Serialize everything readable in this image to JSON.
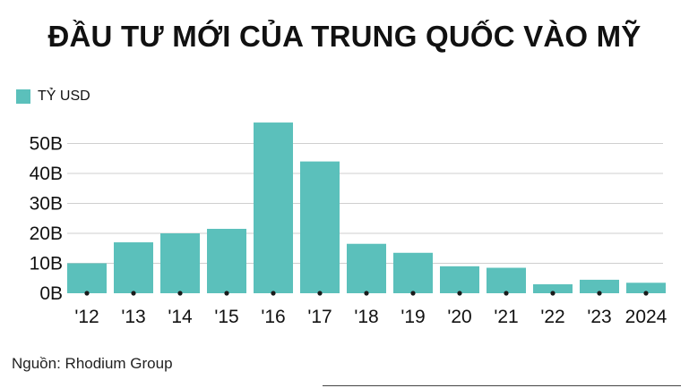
{
  "title": "ĐẦU TƯ MỚI CỦA TRUNG QUỐC VÀO MỸ",
  "legend": {
    "label": "TỶ USD"
  },
  "source": "Nguồn: Rhodium Group",
  "colors": {
    "bar": "#5bc0bb",
    "grid": "#cfcfcf",
    "text": "#111111",
    "dot": "#1a1a1a"
  },
  "chart_data": {
    "type": "bar",
    "categories": [
      "'12",
      "'13",
      "'14",
      "'15",
      "'16",
      "'17",
      "'18",
      "'19",
      "'20",
      "'21",
      "'22",
      "'23",
      "2024"
    ],
    "values": [
      10,
      17,
      20,
      21.5,
      57,
      44,
      16.5,
      13.5,
      9,
      8.5,
      3,
      4.5,
      3.5
    ],
    "series": [
      {
        "name": "TỶ USD",
        "values": [
          10,
          17,
          20,
          21.5,
          57,
          44,
          16.5,
          13.5,
          9,
          8.5,
          3,
          4.5,
          3.5
        ]
      }
    ],
    "yticks": [
      0,
      10,
      20,
      30,
      40,
      50
    ],
    "ytick_labels": [
      "0B",
      "10B",
      "20B",
      "30B",
      "40B",
      "50B"
    ],
    "ylim": [
      0,
      57
    ],
    "grid": true,
    "legend_position": "top-left"
  }
}
